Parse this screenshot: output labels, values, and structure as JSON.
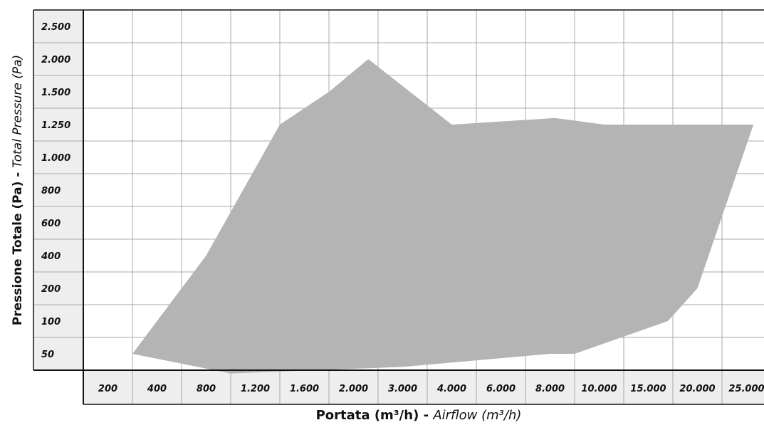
{
  "chart_data": {
    "type": "area",
    "title": "",
    "x_axis": {
      "ticks": [
        "200",
        "400",
        "800",
        "1.200",
        "1.600",
        "2.000",
        "3.000",
        "4.000",
        "6.000",
        "8.000",
        "10.000",
        "15.000",
        "20.000",
        "25.000"
      ],
      "label_main": "Portata (m³/h)",
      "label_separator": " - ",
      "label_alt": "Airflow (m³/h)"
    },
    "y_axis": {
      "ticks": [
        "50",
        "100",
        "200",
        "400",
        "600",
        "800",
        "1.000",
        "1.250",
        "1.500",
        "2.000",
        "2.500"
      ],
      "label_main": "Pressione Totale (Pa)",
      "label_separator": " - ",
      "label_alt": "Total Pressure (Pa)"
    },
    "grid": true,
    "fill_color": "#b4b4b4",
    "series": [
      {
        "name": "",
        "boundary": [
          {
            "x": 300,
            "y": 50
          },
          {
            "x": 800,
            "y": 400
          },
          {
            "x": 1400,
            "y": 1250
          },
          {
            "x": 1800,
            "y": 1500
          },
          {
            "x": 2300,
            "y": 2000
          },
          {
            "x": 4000,
            "y": 1250
          },
          {
            "x": 8200,
            "y": 1300
          },
          {
            "x": 10500,
            "y": 1250
          },
          {
            "x": 25700,
            "y": 1250
          },
          {
            "x": 20000,
            "y": 200
          },
          {
            "x": 17000,
            "y": 100
          },
          {
            "x": 9000,
            "y": 50
          },
          {
            "x": 8000,
            "y": 50
          },
          {
            "x": 3000,
            "y": 30
          },
          {
            "x": 1000,
            "y": 20
          }
        ]
      }
    ]
  }
}
